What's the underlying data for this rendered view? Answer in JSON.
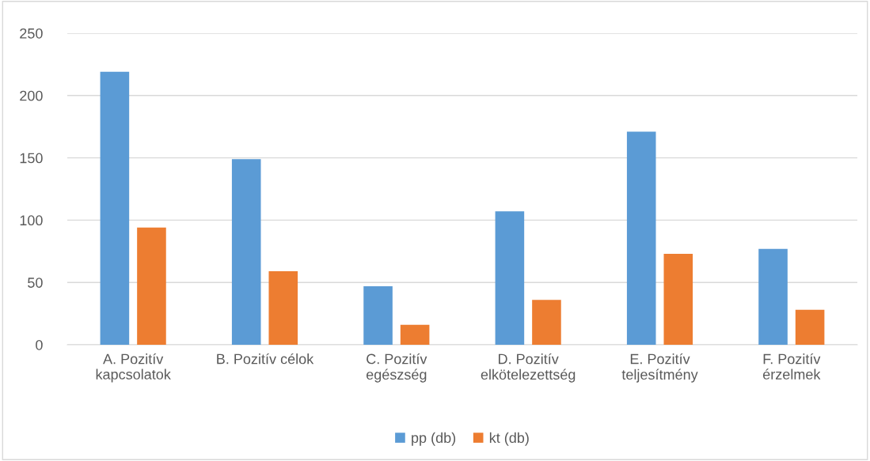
{
  "chart_data": {
    "type": "bar",
    "categories": [
      "A. Pozitív\nkapcsolatok",
      "B. Pozitív célok",
      "C. Pozitív\negészség",
      "D. Pozitív\nelkötelezettség",
      "E. Pozitív\nteljesítmény",
      "F. Pozitív\nérzelmek"
    ],
    "series": [
      {
        "name": "pp (db)",
        "color": "#5b9bd5",
        "values": [
          219,
          149,
          47,
          107,
          171,
          77
        ]
      },
      {
        "name": "kt (db)",
        "color": "#ed7d31",
        "values": [
          94,
          59,
          16,
          36,
          73,
          28
        ]
      }
    ],
    "ylim": [
      0,
      250
    ],
    "yticks": [
      0,
      50,
      100,
      150,
      200,
      250
    ],
    "grid": "y",
    "legend": "bottom"
  }
}
